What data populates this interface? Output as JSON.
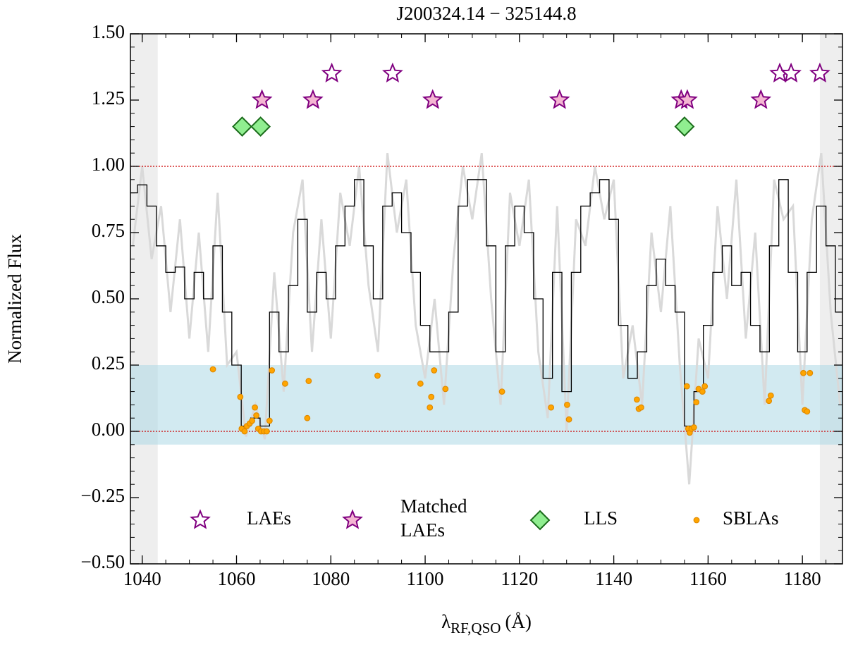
{
  "chart_data": {
    "type": "spectrum",
    "title": "J200324.14 − 325144.8",
    "xlabel": {
      "symbol": "λ",
      "subscript": "RF,QSO",
      "unit": "(Å)"
    },
    "ylabel": "Normalized Flux",
    "xlim": [
      1037.5,
      1188.5
    ],
    "ylim": [
      -0.5,
      1.5
    ],
    "xticks": [
      1040,
      1060,
      1080,
      1100,
      1120,
      1140,
      1160,
      1180
    ],
    "yticks": [
      {
        "value": 1.5,
        "label": "1.50"
      },
      {
        "value": 1.25,
        "label": "1.25"
      },
      {
        "value": 1.0,
        "label": "1.00"
      },
      {
        "value": 0.75,
        "label": "0.75"
      },
      {
        "value": 0.5,
        "label": "0.50"
      },
      {
        "value": 0.25,
        "label": "0.25"
      },
      {
        "value": 0.0,
        "label": "0.00"
      },
      {
        "value": -0.25,
        "label": "−0.25"
      },
      {
        "value": -0.5,
        "label": "−0.50"
      }
    ],
    "shaded_regions": [
      [
        1037.5,
        1043.3
      ],
      [
        1183.7,
        1188.5
      ]
    ],
    "shaded_color": "#eeeeee",
    "band": [
      -0.05,
      0.25
    ],
    "band_color": "#add8e6",
    "hlines": [
      0,
      1
    ],
    "hline_color": "#cc0000",
    "spectrum": {
      "raw_color": "#d9d9d9",
      "binned_color": "#000000",
      "x": [
        1038,
        1040,
        1042,
        1044,
        1046,
        1048,
        1050,
        1052,
        1054,
        1056,
        1058,
        1060,
        1062,
        1064,
        1066,
        1068,
        1070,
        1072,
        1074,
        1076,
        1078,
        1080,
        1082,
        1084,
        1086,
        1088,
        1090,
        1092,
        1094,
        1096,
        1098,
        1100,
        1102,
        1104,
        1106,
        1108,
        1110,
        1112,
        1114,
        1116,
        1118,
        1120,
        1122,
        1124,
        1126,
        1128,
        1130,
        1132,
        1134,
        1136,
        1138,
        1140,
        1142,
        1144,
        1146,
        1148,
        1150,
        1152,
        1154,
        1156,
        1158,
        1160,
        1162,
        1164,
        1166,
        1168,
        1170,
        1172,
        1174,
        1176,
        1178,
        1180,
        1182,
        1184,
        1186,
        1188
      ],
      "raw": [
        0.7,
        1.0,
        0.65,
        0.85,
        0.45,
        0.8,
        0.35,
        0.75,
        0.3,
        0.9,
        0.25,
        0.3,
        -0.02,
        0.1,
        -0.03,
        0.6,
        0.15,
        0.75,
        0.95,
        0.3,
        0.8,
        0.35,
        0.9,
        0.7,
        1.0,
        0.55,
        0.3,
        1.05,
        0.75,
        0.95,
        0.4,
        0.2,
        0.5,
        0.1,
        0.65,
        1.0,
        0.8,
        1.05,
        0.5,
        0.1,
        0.9,
        0.7,
        0.95,
        0.3,
        0.05,
        0.85,
        0.0,
        0.8,
        0.7,
        1.0,
        0.8,
        0.95,
        0.2,
        0.4,
        0.1,
        0.75,
        0.45,
        0.85,
        0.25,
        -0.2,
        0.35,
        0.2,
        0.85,
        0.5,
        0.95,
        0.35,
        0.75,
        0.1,
        0.95,
        0.8,
        0.85,
        0.1,
        0.8,
        1.05,
        0.45,
        0.1
      ],
      "binned": [
        0.9,
        0.93,
        0.85,
        0.7,
        0.6,
        0.62,
        0.5,
        0.6,
        0.5,
        0.7,
        0.45,
        0.25,
        0.02,
        0.05,
        0.02,
        0.45,
        0.3,
        0.55,
        0.8,
        0.45,
        0.6,
        0.5,
        0.7,
        0.85,
        0.95,
        0.7,
        0.5,
        0.85,
        0.9,
        0.75,
        0.6,
        0.4,
        0.3,
        0.3,
        0.45,
        0.85,
        0.95,
        0.95,
        0.7,
        0.3,
        0.7,
        0.85,
        0.75,
        0.5,
        0.2,
        0.6,
        0.15,
        0.6,
        0.85,
        0.9,
        0.95,
        0.8,
        0.4,
        0.2,
        0.3,
        0.55,
        0.65,
        0.55,
        0.45,
        0.02,
        0.15,
        0.4,
        0.6,
        0.7,
        0.55,
        0.6,
        0.4,
        0.3,
        0.7,
        0.95,
        0.6,
        0.3,
        0.6,
        0.85,
        0.7,
        0.45
      ]
    },
    "markers": [
      {
        "name": "LAEs",
        "marker": "star",
        "color": "#800080",
        "fill": "#ffffff",
        "x": [
          1080.2,
          1093.1,
          1175.2,
          1177.6,
          1183.7
        ],
        "values": [
          1.35,
          1.35,
          1.35,
          1.35,
          1.35
        ]
      },
      {
        "name": "Matched LAEs",
        "marker": "star",
        "color": "#800080",
        "fill": "#f4b6d2",
        "x": [
          1065.4,
          1076.2,
          1101.6,
          1128.5,
          1154.3,
          1155.6,
          1171.2
        ],
        "values": [
          1.25,
          1.25,
          1.25,
          1.25,
          1.25,
          1.25,
          1.25
        ]
      },
      {
        "name": "LLS",
        "marker": "diamond",
        "color": "#1a6b1a",
        "fill": "#90ee90",
        "x": [
          1061.2,
          1065.1,
          1155.0
        ],
        "values": [
          1.15,
          1.15,
          1.15
        ]
      },
      {
        "name": "SBLAs",
        "marker": "dot",
        "color": "#e08a00",
        "fill": "#ffa500",
        "x": [
          1055.0,
          1060.8,
          1061.1,
          1061.7,
          1062.2,
          1062.8,
          1063.3,
          1063.9,
          1064.2,
          1064.6,
          1065.2,
          1065.8,
          1066.4,
          1067.0,
          1067.5,
          1070.3,
          1075.0,
          1075.3,
          1089.9,
          1099.0,
          1101.0,
          1101.3,
          1101.9,
          1104.3,
          1116.3,
          1126.7,
          1130.1,
          1130.5,
          1144.9,
          1145.3,
          1145.8,
          1155.5,
          1155.8,
          1156.1,
          1156.5,
          1157.0,
          1157.5,
          1158.0,
          1158.8,
          1159.3,
          1172.9,
          1173.3,
          1180.2,
          1180.5,
          1181.0,
          1181.6
        ],
        "values": [
          0.234,
          0.13,
          0.01,
          0.0,
          0.02,
          0.03,
          0.04,
          0.09,
          0.06,
          0.01,
          0.0,
          0.0,
          0.0,
          0.04,
          0.23,
          0.18,
          0.05,
          0.19,
          0.21,
          0.18,
          0.09,
          0.13,
          0.23,
          0.16,
          0.15,
          0.09,
          0.1,
          0.045,
          0.12,
          0.085,
          0.09,
          0.17,
          0.01,
          -0.005,
          0.01,
          0.015,
          0.11,
          0.16,
          0.15,
          0.17,
          0.115,
          0.135,
          0.22,
          0.08,
          0.075,
          0.22
        ]
      }
    ]
  }
}
